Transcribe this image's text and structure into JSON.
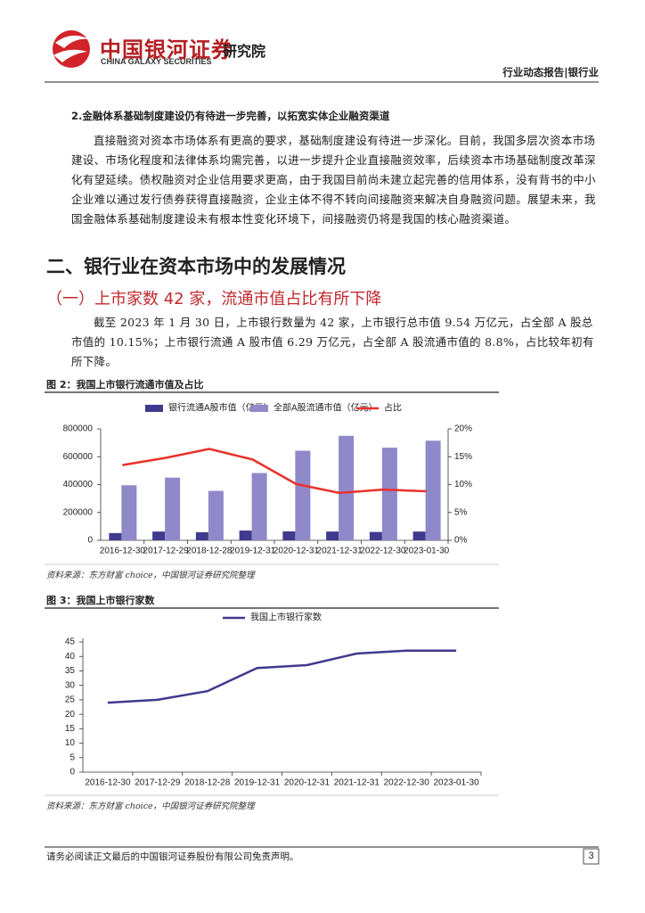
{
  "header": {
    "brand": "中国银河证券",
    "brand_en": "CHINA GALAXY SECURITIES",
    "institute": "研究院",
    "report_type": "行业动态报告|银行业"
  },
  "section": {
    "subheading": "2.金融体系基础制度建设仍有待进一步完善，以拓宽实体企业融资渠道",
    "paragraph": "直接融资对资本市场体系有更高的要求，基础制度建设有待进一步深化。目前，我国多层次资本市场建设、市场化程度和法律体系均需完善，以进一步提升企业直接融资效率，后续资本市场基础制度改革深化有望延续。债权融资对企业信用要求更高，由于我国目前尚未建立起完善的信用体系，没有背书的中小企业难以通过发行债券获得直接融资，企业主体不得不转向间接融资来解决自身融资问题。展望未来，我国金融体系基础制度建设未有根本性变化环境下，间接融资仍将是我国的核心融资渠道。",
    "heading": "二、银行业在资本市场中的发展情况",
    "subheading2": "（一）上市家数 42 家，流通市值占比有所下降",
    "paragraph2": "截至 2023 年 1 月 30 日，上市银行数量为 42 家，上市银行总市值 9.54 万亿元，占全部 A 股总市值的 10.15%；上市银行流通 A 股市值 6.29 万亿元，占全部 A 股流通市值的 8.8%，占比较年初有所下降。"
  },
  "sources": [
    "资料来源：东方财富 choice，中国银河证券研究院整理",
    "资料来源：东方财富 choice，中国银河证券研究院整理"
  ],
  "footer": {
    "disclaimer": "请务必阅读正文最后的中国银河证券股份有限公司免责声明。",
    "page": "3"
  },
  "chart_data": [
    {
      "type": "bar",
      "title": "图 2：我国上市银行流通市值及占比",
      "categories": [
        "2016-12-30",
        "2017-12-29",
        "2018-12-28",
        "2019-12-31",
        "2020-12-31",
        "2021-12-31",
        "2022-12-30",
        "2023-01-30"
      ],
      "series": [
        {
          "name": "银行流通A股市值（亿元）",
          "type": "bar",
          "color": "#3f3a8e",
          "values": [
            52000,
            63000,
            58000,
            70000,
            64000,
            63000,
            60000,
            62900
          ]
        },
        {
          "name": "全部A股流通市值（亿元）",
          "type": "bar",
          "color": "#8f88c9",
          "values": [
            395000,
            450000,
            355000,
            483000,
            643000,
            750000,
            665000,
            715000
          ]
        },
        {
          "name": "占比",
          "type": "line",
          "axis": "y2",
          "color": "#e8312b",
          "values": [
            13.5,
            14.8,
            16.4,
            14.5,
            10.1,
            8.5,
            9.1,
            8.8
          ]
        }
      ],
      "ylim": [
        0,
        800000
      ],
      "yticks": [
        0,
        200000,
        400000,
        600000,
        800000
      ],
      "y2lim": [
        0,
        20
      ],
      "y2ticks": [
        {
          "value": 0,
          "label": "0%"
        },
        {
          "value": 5,
          "label": "5%"
        },
        {
          "value": 10,
          "label": "10%"
        },
        {
          "value": 15,
          "label": "15%"
        },
        {
          "value": 20,
          "label": "20%"
        }
      ]
    },
    {
      "type": "line",
      "title": "图 3：我国上市银行家数",
      "categories": [
        "2016-12-30",
        "2017-12-29",
        "2018-12-28",
        "2019-12-31",
        "2020-12-31",
        "2021-12-31",
        "2022-12-30",
        "2023-01-30"
      ],
      "series": [
        {
          "name": "我国上市银行家数",
          "color": "#3f3a8e",
          "values": [
            24,
            25,
            28,
            36,
            37,
            41,
            42,
            42
          ]
        }
      ],
      "ylim": [
        0,
        45
      ],
      "yticks": [
        0,
        5,
        10,
        15,
        20,
        25,
        30,
        35,
        40,
        45
      ]
    }
  ]
}
